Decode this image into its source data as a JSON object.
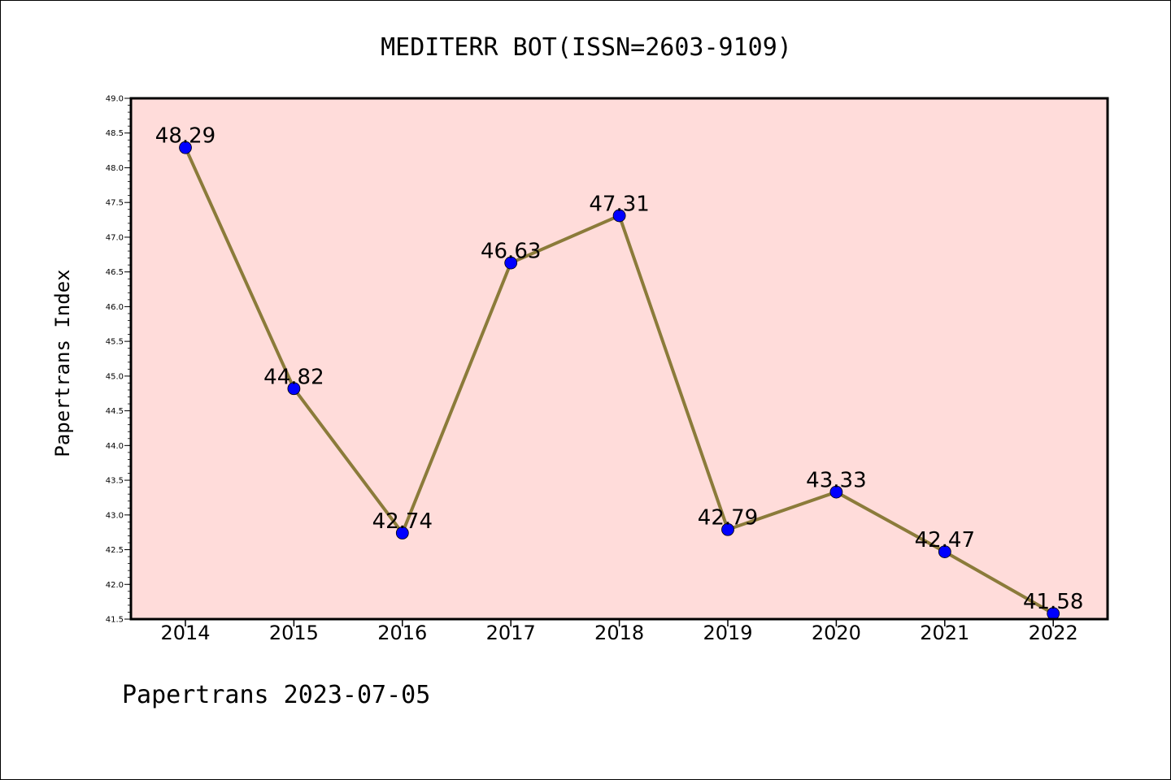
{
  "chart_data": {
    "type": "line",
    "title": "MEDITERR BOT(ISSN=2603-9109)",
    "xlabel": "",
    "ylabel": "Papertrans Index",
    "categories": [
      "2014",
      "2015",
      "2016",
      "2017",
      "2018",
      "2019",
      "2020",
      "2021",
      "2022"
    ],
    "series": [
      {
        "values": [
          48.29,
          44.82,
          42.74,
          46.63,
          47.31,
          42.79,
          43.33,
          42.47,
          41.58
        ],
        "data_labels": [
          "48.29",
          "44.82",
          "42.74",
          "46.63",
          "47.31",
          "42.79",
          "43.33",
          "42.47",
          "41.58"
        ],
        "line_color": "#8B7B3A",
        "marker_color": "#0000FF"
      }
    ],
    "ylim": [
      41.5,
      49.0
    ],
    "yticks": [
      "41.5",
      "42.0",
      "42.5",
      "43.0",
      "43.5",
      "44.0",
      "44.5",
      "45.0",
      "45.5",
      "46.0",
      "46.5",
      "47.0",
      "47.5",
      "48.0",
      "48.5",
      "49.0"
    ],
    "grid": false,
    "plot_background": "#FFDCDA"
  },
  "footer": {
    "text": "Papertrans 2023-07-05"
  }
}
